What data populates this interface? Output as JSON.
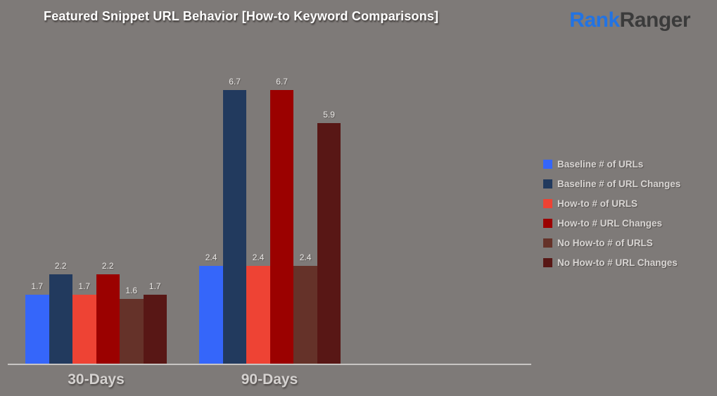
{
  "header": {
    "title": "Featured Snippet URL Behavior [How-to Keyword Comparisons]",
    "logo": {
      "part1": "Rank",
      "part2": "Ranger",
      "part1_color": "#2273E3",
      "part2_color": "#3B3B3B"
    }
  },
  "colors": {
    "background": "#7E7A78",
    "axis_line": "#C8C5C3",
    "title_text": "#FFFFFF",
    "legend_text": "#D8D5D3",
    "category_text": "#D5D2D0",
    "value_label_text": "#E8E6E4"
  },
  "chart_data": {
    "type": "bar",
    "title": "Featured Snippet URL Behavior [How-to Keyword Comparisons]",
    "categories": [
      "30-Days",
      "90-Days"
    ],
    "series": [
      {
        "name": "Baseline # of URLs",
        "color": "#3566FA",
        "values": [
          1.7,
          2.4
        ]
      },
      {
        "name": "Baseline # of URL Changes",
        "color": "#223A5E",
        "values": [
          2.2,
          6.7
        ]
      },
      {
        "name": "How-to # of URLS",
        "color": "#EE4334",
        "values": [
          1.7,
          2.4
        ]
      },
      {
        "name": "How-to # URL Changes",
        "color": "#9B0100",
        "values": [
          2.2,
          6.7
        ]
      },
      {
        "name": "No How-to # of URLS",
        "color": "#653229",
        "values": [
          1.6,
          2.4
        ]
      },
      {
        "name": "No How-to # URL Changes",
        "color": "#581715",
        "values": [
          1.7,
          5.9
        ]
      }
    ],
    "value_labels_shown": true,
    "grid": false,
    "legend_position": "right",
    "xlabel": "",
    "ylabel": "",
    "ylim": [
      0,
      7.5
    ]
  }
}
